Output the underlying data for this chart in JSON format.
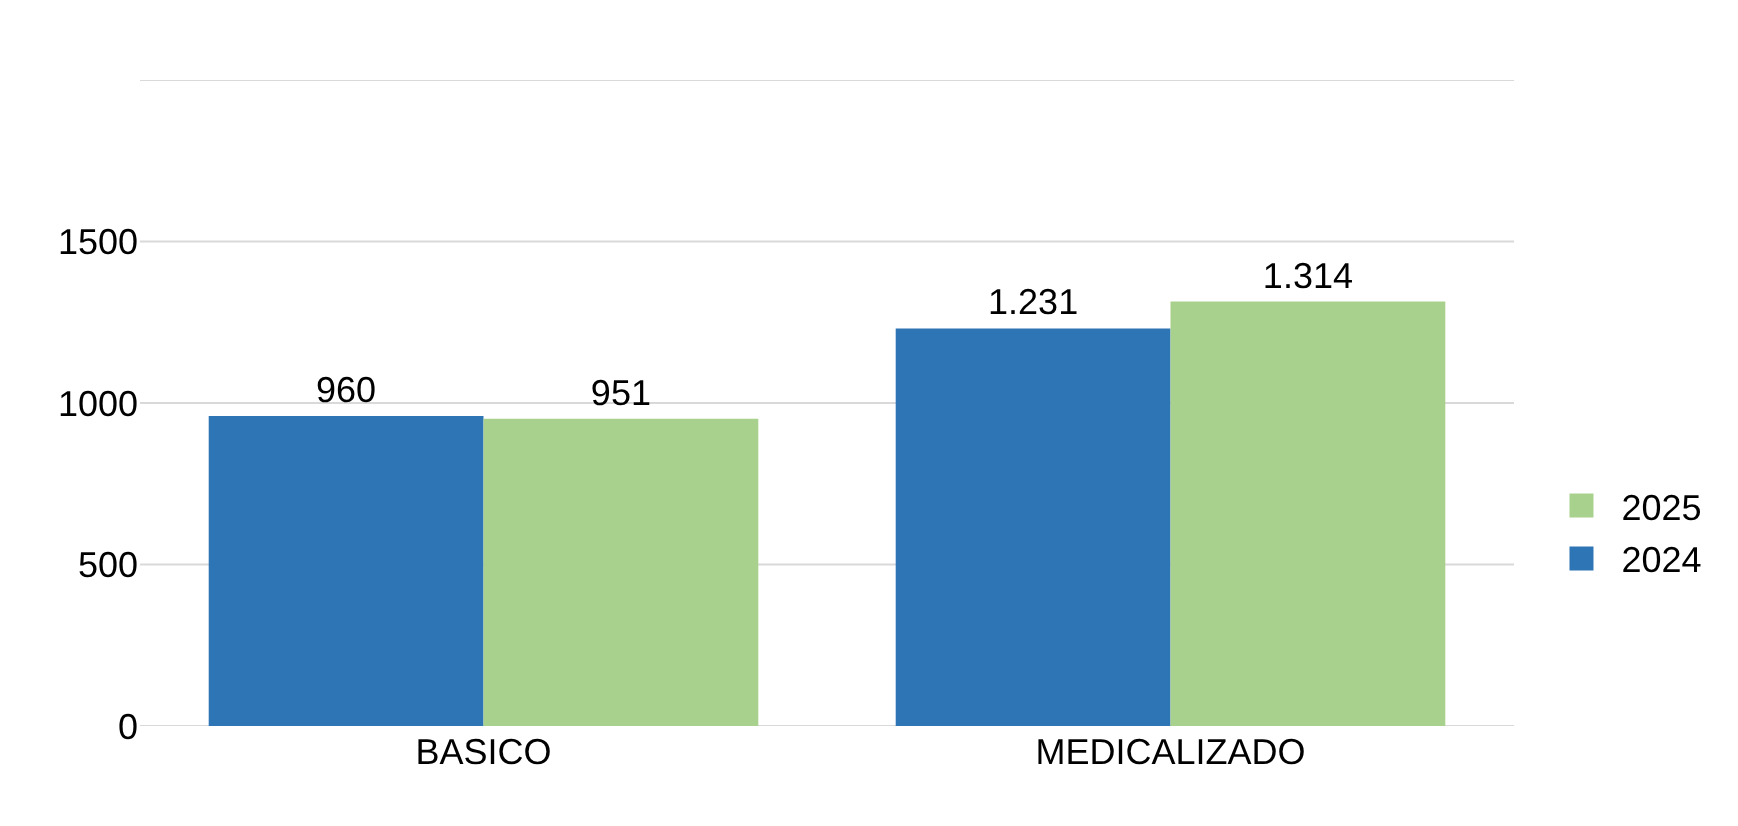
{
  "chart_data": {
    "type": "bar",
    "categories": [
      "BASICO",
      "MEDICALIZADO"
    ],
    "series": [
      {
        "name": "2024",
        "color": "#2e75b6",
        "values": [
          960,
          1231
        ],
        "value_labels": [
          "960",
          "1.231"
        ]
      },
      {
        "name": "2025",
        "color": "#a9d18e",
        "values": [
          951,
          1314
        ],
        "value_labels": [
          "951",
          "1.314"
        ]
      }
    ],
    "ylim": [
      0,
      2000
    ],
    "yticks": [
      0,
      500,
      1000,
      1500,
      {
        "value": 2000,
        "label": null
      }
    ],
    "grid": "y",
    "legend": "right"
  }
}
